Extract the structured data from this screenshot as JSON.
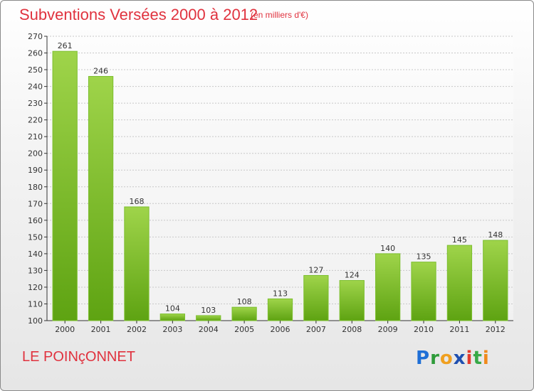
{
  "header": {
    "title": "Subventions Versées 2000 à 2012",
    "subtitle": "(en milliers d'€)"
  },
  "footer": {
    "commune": "LE POINçONNET",
    "logo": "Proxiti"
  },
  "colors": {
    "title": "#e0323e",
    "bar_top": "#9fd44a",
    "bar_bottom": "#5ea312",
    "axis": "#333333",
    "grid": "#c8c8c8"
  },
  "chart_data": {
    "type": "bar",
    "categories": [
      "2000",
      "2001",
      "2002",
      "2003",
      "2004",
      "2005",
      "2006",
      "2007",
      "2008",
      "2009",
      "2010",
      "2011",
      "2012"
    ],
    "values": [
      261,
      246,
      168,
      104,
      103,
      108,
      113,
      127,
      124,
      140,
      135,
      145,
      148
    ],
    "title": "Subventions Versées 2000 à 2012",
    "subtitle": "(en milliers d'€)",
    "xlabel": "",
    "ylabel": "",
    "ylim": [
      100,
      270
    ],
    "yticks": [
      100,
      110,
      120,
      130,
      140,
      150,
      160,
      170,
      180,
      190,
      200,
      210,
      220,
      230,
      240,
      250,
      260,
      270
    ],
    "grid": true
  }
}
